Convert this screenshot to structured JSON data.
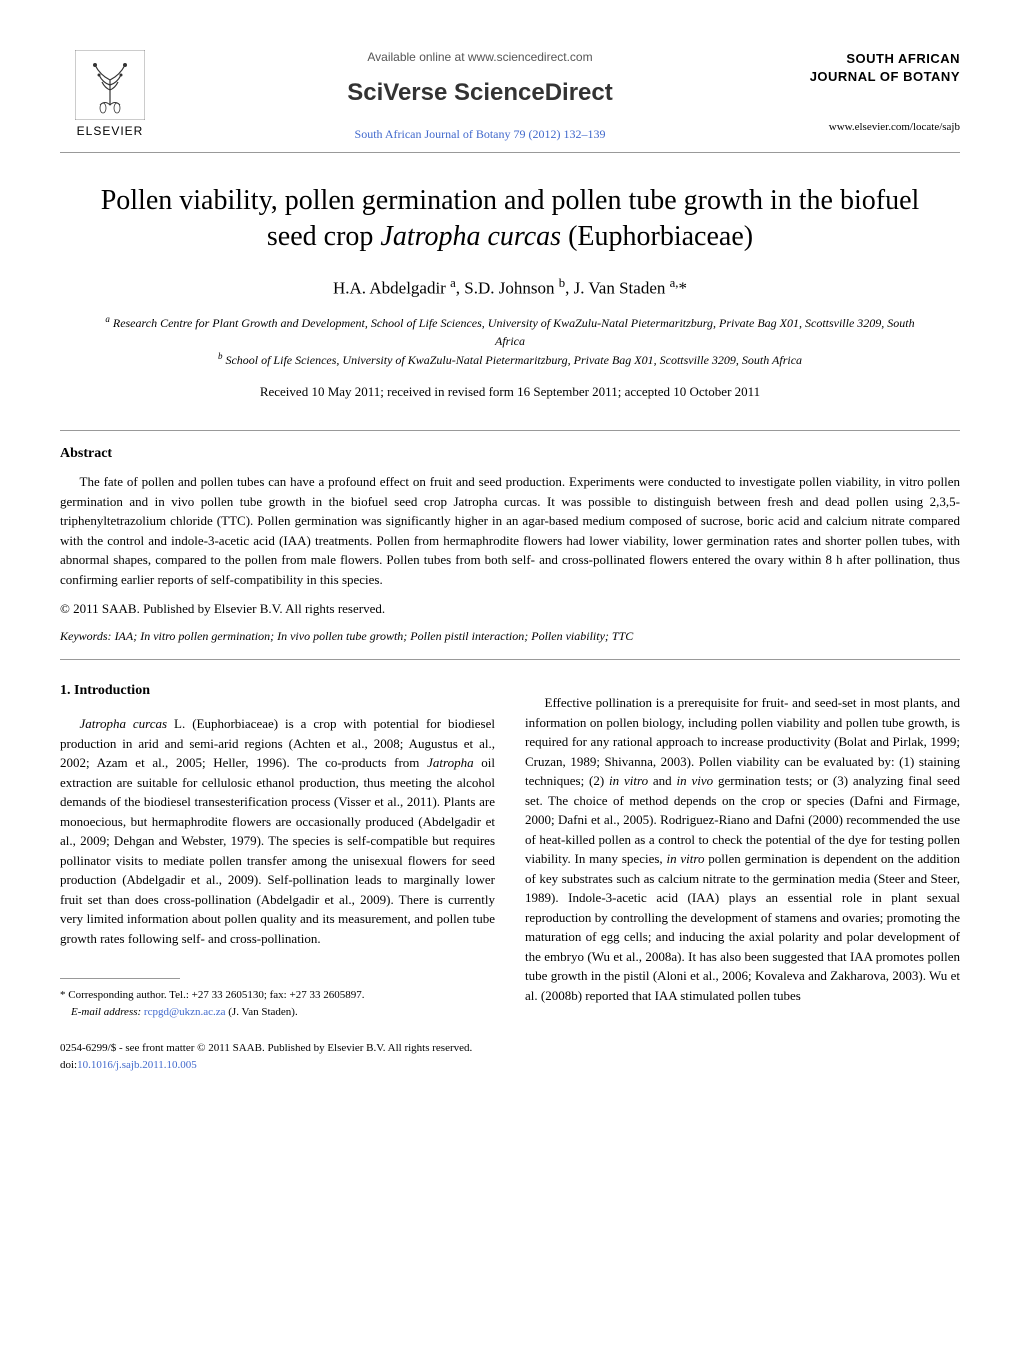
{
  "header": {
    "available_online": "Available online at www.sciencedirect.com",
    "sciverse": "SciVerse ScienceDirect",
    "journal_ref": "South African Journal of Botany 79 (2012) 132–139",
    "publisher_word": "ELSEVIER",
    "right_journal": "SOUTH AFRICAN JOURNAL OF BOTANY",
    "right_url": "www.elsevier.com/locate/sajb"
  },
  "title_line1": "Pollen viability, pollen germination and pollen tube growth in the biofuel",
  "title_line2": "seed crop ",
  "title_species": "Jatropha curcas",
  "title_family": " (Euphorbiaceae)",
  "authors_html": "H.A. Abdelgadir <sup>a</sup>, S.D. Johnson <sup>b</sup>, J. Van Staden <sup>a,</sup>*",
  "affiliation_a": "Research Centre for Plant Growth and Development, School of Life Sciences, University of KwaZulu-Natal Pietermaritzburg, Private Bag X01, Scottsville 3209, South Africa",
  "affiliation_b": "School of Life Sciences, University of KwaZulu-Natal Pietermaritzburg, Private Bag X01, Scottsville 3209, South Africa",
  "dates": "Received 10 May 2011; received in revised form 16 September 2011; accepted 10 October 2011",
  "abstract": {
    "heading": "Abstract",
    "body": "The fate of pollen and pollen tubes can have a profound effect on fruit and seed production. Experiments were conducted to investigate pollen viability, in vitro pollen germination and in vivo pollen tube growth in the biofuel seed crop Jatropha curcas. It was possible to distinguish between fresh and dead pollen using 2,3,5-triphenyltetrazolium chloride (TTC). Pollen germination was significantly higher in an agar-based medium composed of sucrose, boric acid and calcium nitrate compared with the control and indole-3-acetic acid (IAA) treatments. Pollen from hermaphrodite flowers had lower viability, lower germination rates and shorter pollen tubes, with abnormal shapes, compared to the pollen from male flowers. Pollen tubes from both self- and cross-pollinated flowers entered the ovary within 8 h after pollination, thus confirming earlier reports of self-compatibility in this species.",
    "copyright": "© 2011 SAAB. Published by Elsevier B.V. All rights reserved."
  },
  "keywords_label": "Keywords:",
  "keywords": " IAA; In vitro pollen germination; In vivo pollen tube growth; Pollen pistil interaction; Pollen viability; TTC",
  "intro": {
    "heading": "1. Introduction",
    "col_left_p1a": "Jatropha curcas",
    "col_left_p1b": " L. (Euphorbiaceae) is a crop with potential for biodiesel production in arid and semi-arid regions (Achten et al., 2008; Augustus et al., 2002; Azam et al., 2005; Heller, 1996). The co-products from ",
    "col_left_p1c": "Jatropha",
    "col_left_p1d": " oil extraction are suitable for cellulosic ethanol production, thus meeting the alcohol demands of the biodiesel transesterification process (Visser et al., 2011). Plants are monoecious, but hermaphrodite flowers are occasionally produced (Abdelgadir et al., 2009; Dehgan and Webster, 1979). The species is self-compatible but requires pollinator visits to mediate pollen transfer among the unisexual flowers for seed production (Abdelgadir et al., 2009). Self-pollination leads to marginally lower fruit set than does cross-pollination (Abdelgadir et al., 2009). There is currently very limited information about pollen quality and its measurement, and pollen tube growth rates following self- and cross-pollination.",
    "col_right_p1": "Effective pollination is a prerequisite for fruit- and seed-set in most plants, and information on pollen biology, including pollen viability and pollen tube growth, is required for any rational approach to increase productivity (Bolat and Pirlak, 1999; Cruzan, 1989; Shivanna, 2003). Pollen viability can be evaluated by: (1) staining techniques; (2) ",
    "col_right_p1_it1": "in vitro",
    "col_right_p1b": " and ",
    "col_right_p1_it2": "in vivo",
    "col_right_p1c": " germination tests; or (3) analyzing final seed set. The choice of method depends on the crop or species (Dafni and Firmage, 2000; Dafni et al., 2005). Rodriguez-Riano and Dafni (2000) recommended the use of heat-killed pollen as a control to check the potential of the dye for testing pollen viability. In many species, ",
    "col_right_p1_it3": "in vitro",
    "col_right_p1d": " pollen germination is dependent on the addition of key substrates such as calcium nitrate to the germination media (Steer and Steer, 1989). Indole-3-acetic acid (IAA) plays an essential role in plant sexual reproduction by controlling the development of stamens and ovaries; promoting the maturation of egg cells; and inducing the axial polarity and polar development of the embryo (Wu et al., 2008a). It has also been suggested that IAA promotes pollen tube growth in the pistil (Aloni et al., 2006; Kovaleva and Zakharova, 2003). Wu et al. (2008b) reported that IAA stimulated pollen tubes"
  },
  "footnote": {
    "corresp": "* Corresponding author. Tel.: +27 33 2605130; fax: +27 33 2605897.",
    "email_label": "E-mail address:",
    "email": " rcpgd@ukzn.ac.za",
    "email_suffix": " (J. Van Staden)."
  },
  "bottom": {
    "issn_line": "0254-6299/$ - see front matter © 2011 SAAB. Published by Elsevier B.V. All rights reserved.",
    "doi_label": "doi:",
    "doi": "10.1016/j.sajb.2011.10.005"
  },
  "colors": {
    "link": "#4169cc",
    "text": "#000000",
    "rule": "#999999"
  }
}
